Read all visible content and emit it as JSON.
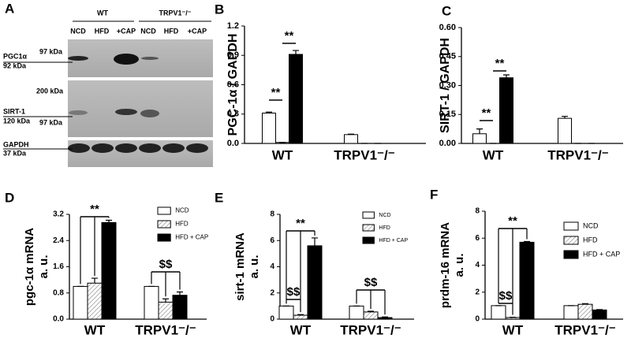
{
  "blot": {
    "panel_label": "A",
    "groups": [
      "WT",
      "TRPV1⁻/⁻"
    ],
    "lanes": [
      "NCD",
      "HFD",
      "+CAP",
      "NCD",
      "HFD",
      "+CAP"
    ],
    "rows": [
      {
        "protein": "PGC1α",
        "size": "92 kDa",
        "markers": [
          "97 kDa"
        ]
      },
      {
        "protein": "SIRT-1",
        "size": "120 kDa",
        "markers": [
          "200 kDa",
          "97 kDa"
        ]
      },
      {
        "protein": "GAPDH",
        "size": "37 kDa",
        "markers": []
      }
    ]
  },
  "chart_data": [
    {
      "type": "bar",
      "panel_label": "B",
      "ylabel": [
        "PGC-1α / GAPDH"
      ],
      "categories": [
        "WT",
        "TRPV1⁻/⁻"
      ],
      "ylim": [
        0,
        1.2
      ],
      "yticks": [
        {
          "value": 0,
          "label": "0.0"
        },
        0.3,
        0.6,
        0.9,
        1.2
      ],
      "series": [
        {
          "color": "#ffffff",
          "values": [
            0.31,
            0.09
          ],
          "errors": [
            0.01,
            0.005
          ]
        },
        {
          "color": "#888888",
          "hatch": true,
          "values": [
            0.01,
            0
          ],
          "errors": [
            0,
            0
          ]
        },
        {
          "color": "#000000",
          "values": [
            0.91,
            0
          ],
          "errors": [
            0.04,
            0
          ]
        }
      ],
      "annotations": [
        "**",
        "**"
      ]
    },
    {
      "type": "bar",
      "panel_label": "C",
      "ylabel": [
        "SIRT-1 / GAPDH"
      ],
      "categories": [
        "WT",
        "TRPV1⁻/⁻"
      ],
      "ylim": [
        0,
        0.6
      ],
      "yticks": [
        {
          "value": 0,
          "label": "0.00"
        },
        0.15,
        {
          "value": 0.3,
          "label": "0.30"
        },
        0.45,
        {
          "value": 0.6,
          "label": "0.60"
        }
      ],
      "series": [
        {
          "color": "#ffffff",
          "values": [
            0.05,
            0.13
          ],
          "errors": [
            0.025,
            0.01
          ]
        },
        {
          "color": "#888888",
          "hatch": true,
          "values": [
            0,
            0
          ],
          "errors": [
            0,
            0
          ]
        },
        {
          "color": "#000000",
          "values": [
            0.34,
            0
          ],
          "errors": [
            0.015,
            0
          ]
        }
      ],
      "annotations": [
        "**",
        "**"
      ]
    },
    {
      "type": "bar",
      "panel_label": "D",
      "ylabel": [
        "pgc-1α mRNA",
        "a. u."
      ],
      "categories": [
        "WT",
        "TRPV1⁻/⁻"
      ],
      "ylim": [
        0,
        3.2
      ],
      "yticks": [
        {
          "value": 0,
          "label": "0.0"
        },
        0.8,
        1.6,
        2.4,
        3.2
      ],
      "legend": "upper right",
      "series": [
        {
          "name": "NCD",
          "color": "#ffffff",
          "values": [
            1.0,
            1.0
          ],
          "errors": [
            0,
            0
          ]
        },
        {
          "name": "HFD",
          "color": "#888888",
          "hatch": true,
          "values": [
            1.1,
            0.52
          ],
          "errors": [
            0.15,
            0.1
          ]
        },
        {
          "name": "HFD + CAP",
          "color": "#000000",
          "values": [
            2.95,
            0.73
          ],
          "errors": [
            0.07,
            0.1
          ]
        }
      ],
      "annotations": [
        "**",
        "$$"
      ]
    },
    {
      "type": "bar",
      "panel_label": "E",
      "ylabel": [
        "sirt-1 mRNA",
        "a. u."
      ],
      "categories": [
        "WT",
        "TRPV1⁻/⁻"
      ],
      "ylim": [
        0,
        8
      ],
      "yticks": [
        0,
        2,
        4,
        6,
        8
      ],
      "legend": "upper right",
      "series": [
        {
          "name": "NCD",
          "color": "#ffffff",
          "values": [
            1.0,
            1.0
          ],
          "errors": [
            0,
            0
          ]
        },
        {
          "name": "HFD",
          "color": "#888888",
          "hatch": true,
          "values": [
            0.3,
            0.55
          ],
          "errors": [
            0.05,
            0.05
          ]
        },
        {
          "name": "HFD + CAP",
          "color": "#000000",
          "values": [
            5.6,
            0.12
          ],
          "errors": [
            0.6,
            0.05
          ]
        }
      ],
      "annotations": [
        "**",
        "$$",
        "$$"
      ]
    },
    {
      "type": "bar",
      "panel_label": "F",
      "ylabel": [
        "prdm-16 mRNA",
        "a. u."
      ],
      "categories": [
        "WT",
        "TRPV1⁻/⁻"
      ],
      "ylim": [
        0,
        8
      ],
      "yticks": [
        0,
        2,
        4,
        6,
        8
      ],
      "legend": "upper right",
      "series": [
        {
          "name": "NCD",
          "color": "#ffffff",
          "values": [
            1.0,
            1.0
          ],
          "errors": [
            0,
            0
          ]
        },
        {
          "name": "HFD",
          "color": "#888888",
          "hatch": true,
          "values": [
            0.12,
            1.1
          ],
          "errors": [
            0.02,
            0.05
          ]
        },
        {
          "name": "HFD + CAP",
          "color": "#000000",
          "values": [
            5.7,
            0.68
          ],
          "errors": [
            0.05,
            0.03
          ]
        }
      ],
      "annotations": [
        "**",
        "$$"
      ]
    }
  ]
}
